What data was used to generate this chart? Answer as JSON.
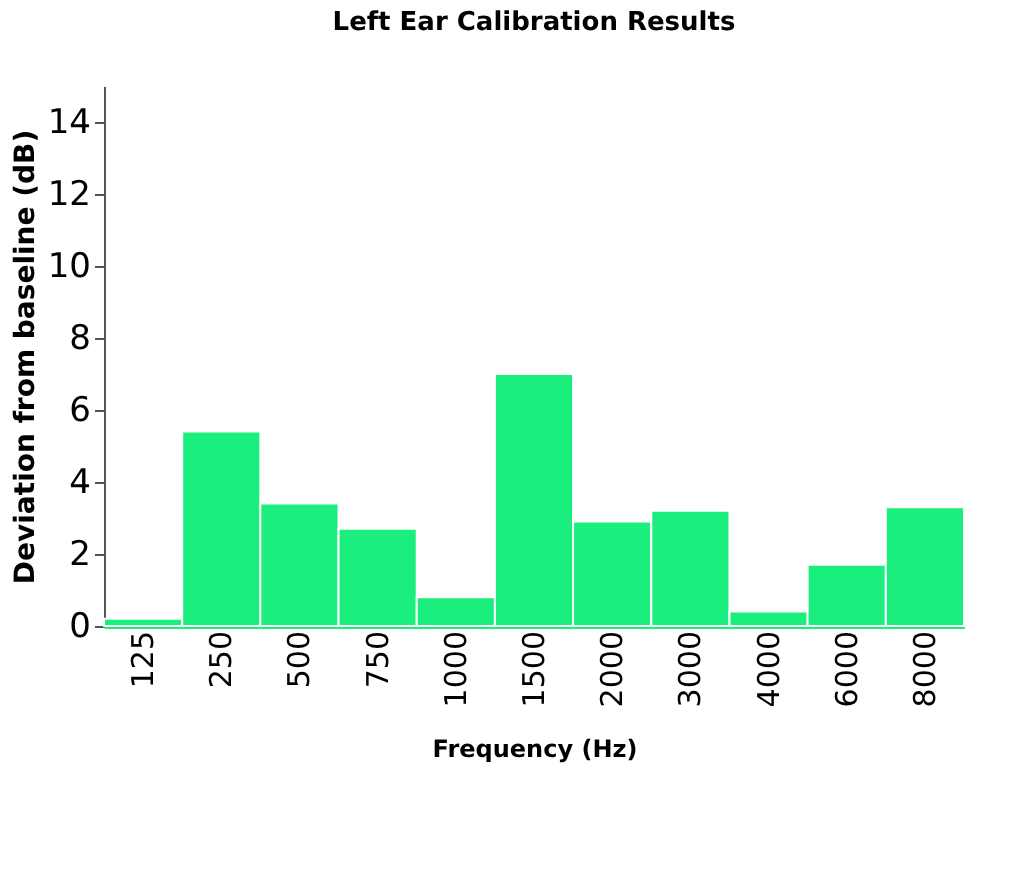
{
  "chart_data": {
    "type": "bar",
    "title": "Left Ear Calibration Results",
    "xlabel": "Frequency (Hz)",
    "ylabel": "Deviation from baseline (dB)",
    "categories": [
      "125",
      "250",
      "500",
      "750",
      "1000",
      "1500",
      "2000",
      "3000",
      "4000",
      "6000",
      "8000"
    ],
    "values": [
      0.2,
      5.4,
      3.4,
      2.7,
      0.8,
      7.0,
      2.9,
      3.2,
      0.4,
      1.7,
      3.3
    ],
    "color": "#1aef7d",
    "ylim": [
      0,
      15
    ],
    "yticks": [
      0,
      2,
      4,
      6,
      8,
      10,
      12,
      14
    ],
    "grid": false
  }
}
